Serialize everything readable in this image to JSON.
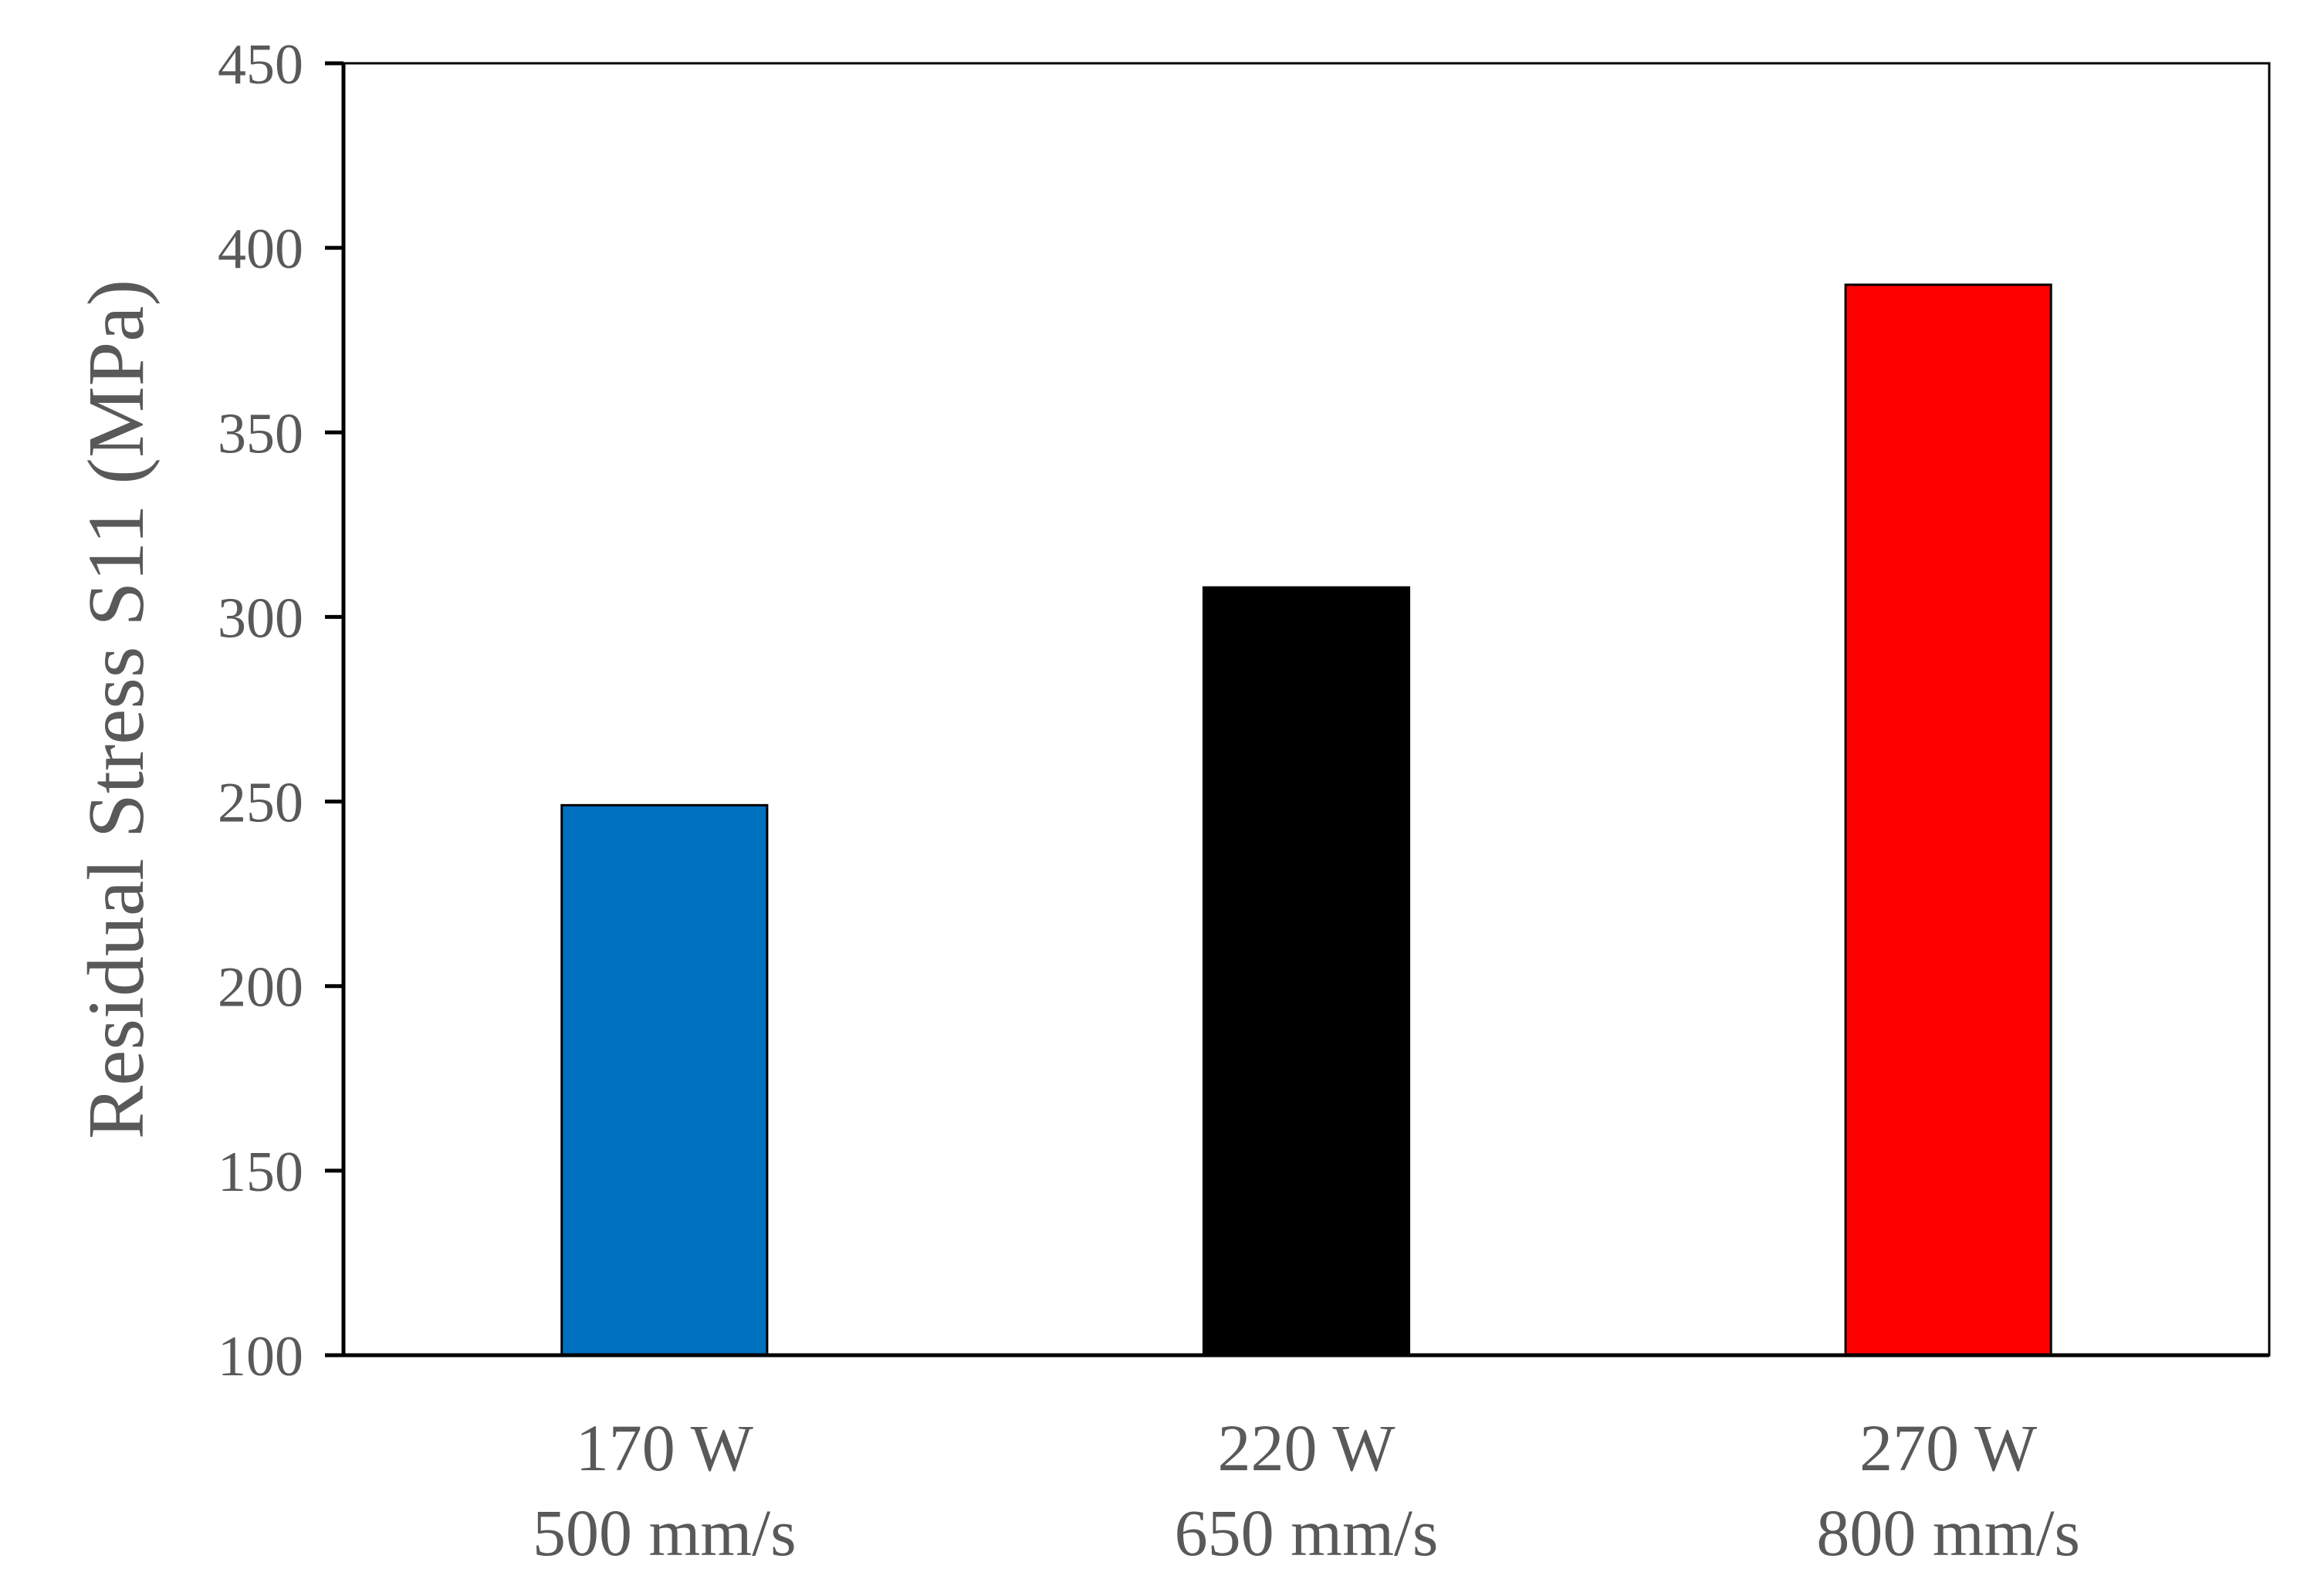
{
  "chart_data": {
    "type": "bar",
    "categories": [
      [
        "170 W",
        "500 mm/s"
      ],
      [
        "220 W",
        "650 mm/s"
      ],
      [
        "270 W",
        "800 mm/s"
      ]
    ],
    "values": [
      249,
      308,
      390
    ],
    "colors": [
      "#0070C0",
      "#000000",
      "#FF0000"
    ],
    "title": "",
    "xlabel": "",
    "ylabel": "Residual Stress S11 (MPa)",
    "ylim": [
      100,
      450
    ],
    "yticks": [
      100,
      150,
      200,
      250,
      300,
      350,
      400,
      450
    ],
    "grid": false,
    "legend": "none"
  }
}
